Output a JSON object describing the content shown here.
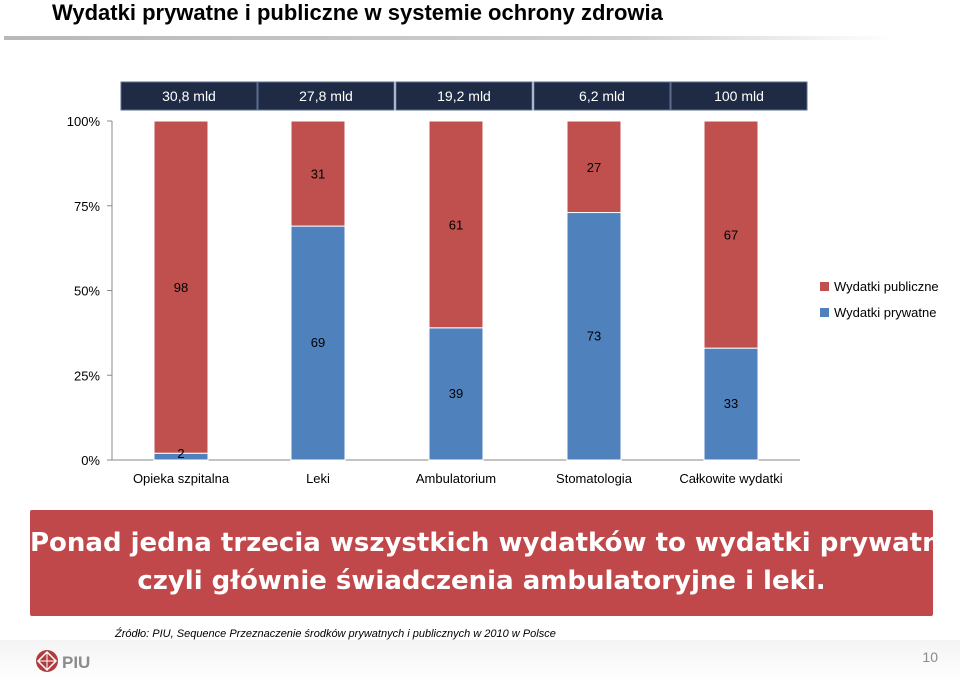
{
  "slide": {
    "title": "Wydatki prywatne i publiczne w systemie ochrony zdrowia",
    "page_number": "10"
  },
  "banner": {
    "line1": "Ponad jedna trzecia wszystkich wydatków to wydatki prywatne,",
    "line2": "czyli głównie świadczenia ambulatoryjne i leki."
  },
  "source": {
    "text": "Źródło: PIU, Sequence Przeznaczenie środków prywatnych i publicznych w 2010 w Polsce"
  },
  "logo": {
    "text": "PIU"
  },
  "chart_data": {
    "type": "bar",
    "stacked": true,
    "percent": true,
    "categories": [
      "Opieka szpitalna",
      "Leki",
      "Ambulatorium",
      "Stomatologia",
      "Całkowite wydatki"
    ],
    "totals": [
      "30,8 mld",
      "27,8 mld",
      "19,2 mld",
      "6,2 mld",
      "100 mld"
    ],
    "series": [
      {
        "name": "Wydatki prywatne",
        "values": [
          2,
          69,
          39,
          73,
          33
        ],
        "color": "#4f81bd"
      },
      {
        "name": "Wydatki publiczne",
        "values": [
          98,
          31,
          61,
          27,
          67
        ],
        "color": "#c0504d"
      }
    ],
    "yticks": [
      "0%",
      "25%",
      "50%",
      "75%",
      "100%"
    ],
    "ylim": [
      0,
      100
    ],
    "legend": "right",
    "grid": false
  }
}
